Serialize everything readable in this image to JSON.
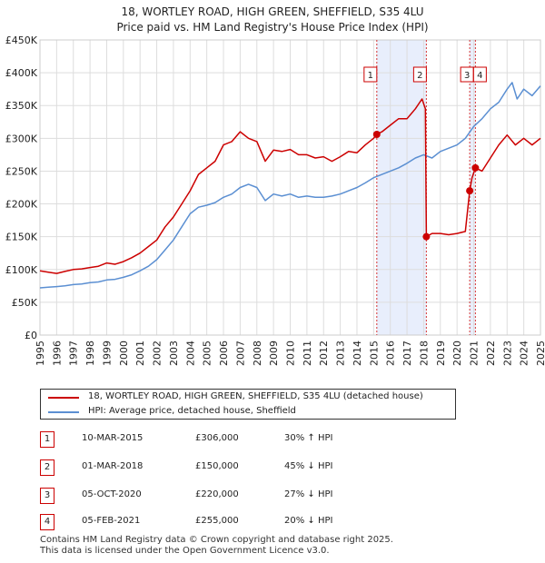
{
  "title_line1": "18, WORTLEY ROAD, HIGH GREEN, SHEFFIELD, S35 4LU",
  "title_line2": "Price paid vs. HM Land Registry's House Price Index (HPI)",
  "colors": {
    "property": "#cc0000",
    "hpi": "#5b8fd2",
    "shade": "#e8eefc",
    "vline": "#cc0000"
  },
  "chart_data": {
    "type": "line",
    "xlim": [
      1995,
      2025
    ],
    "ylim": [
      0,
      450000
    ],
    "y_ticks": [
      0,
      50000,
      100000,
      150000,
      200000,
      250000,
      300000,
      350000,
      400000,
      450000
    ],
    "y_tick_labels": [
      "£0",
      "£50K",
      "£100K",
      "£150K",
      "£200K",
      "£250K",
      "£300K",
      "£350K",
      "£400K",
      "£450K"
    ],
    "x_ticks": [
      1995,
      1996,
      1997,
      1998,
      1999,
      2000,
      2001,
      2002,
      2003,
      2004,
      2005,
      2006,
      2007,
      2008,
      2009,
      2010,
      2011,
      2012,
      2013,
      2014,
      2015,
      2016,
      2017,
      2018,
      2019,
      2020,
      2021,
      2022,
      2023,
      2024,
      2025
    ],
    "shaded_ranges": [
      [
        2015.19,
        2018.16
      ],
      [
        2020.76,
        2021.1
      ]
    ],
    "series": [
      {
        "name": "18, WORTLEY ROAD, HIGH GREEN, SHEFFIELD, S35 4LU (detached house)",
        "key": "property",
        "x": [
          1995.0,
          1995.5,
          1996.0,
          1996.5,
          1997.0,
          1997.5,
          1998.0,
          1998.5,
          1999.0,
          1999.5,
          2000.0,
          2000.5,
          2001.0,
          2001.5,
          2002.0,
          2002.5,
          2003.0,
          2003.5,
          2004.0,
          2004.5,
          2005.0,
          2005.5,
          2006.0,
          2006.5,
          2007.0,
          2007.5,
          2008.0,
          2008.5,
          2009.0,
          2009.5,
          2010.0,
          2010.5,
          2011.0,
          2011.5,
          2012.0,
          2012.5,
          2013.0,
          2013.5,
          2014.0,
          2014.5,
          2015.0,
          2015.19,
          2015.5,
          2016.0,
          2016.5,
          2017.0,
          2017.5,
          2017.9,
          2018.1,
          2018.16,
          2018.5,
          2019.0,
          2019.5,
          2020.0,
          2020.5,
          2020.76,
          2020.9,
          2021.1,
          2021.5,
          2022.0,
          2022.5,
          2023.0,
          2023.5,
          2024.0,
          2024.5,
          2025.0
        ],
        "values": [
          98000,
          96000,
          94000,
          97000,
          100000,
          101000,
          103000,
          105000,
          110000,
          108000,
          112000,
          118000,
          125000,
          135000,
          145000,
          165000,
          180000,
          200000,
          220000,
          245000,
          255000,
          265000,
          290000,
          295000,
          310000,
          300000,
          295000,
          265000,
          282000,
          280000,
          283000,
          275000,
          275000,
          270000,
          272000,
          265000,
          272000,
          280000,
          278000,
          290000,
          300000,
          306000,
          310000,
          320000,
          330000,
          330000,
          345000,
          360000,
          345000,
          150000,
          155000,
          155000,
          153000,
          155000,
          158000,
          220000,
          240000,
          255000,
          250000,
          270000,
          290000,
          305000,
          290000,
          300000,
          290000,
          300000
        ]
      },
      {
        "name": "HPI: Average price, detached house, Sheffield",
        "key": "hpi",
        "x": [
          1995.0,
          1995.5,
          1996.0,
          1996.5,
          1997.0,
          1997.5,
          1998.0,
          1998.5,
          1999.0,
          1999.5,
          2000.0,
          2000.5,
          2001.0,
          2001.5,
          2002.0,
          2002.5,
          2003.0,
          2003.5,
          2004.0,
          2004.5,
          2005.0,
          2005.5,
          2006.0,
          2006.5,
          2007.0,
          2007.5,
          2008.0,
          2008.5,
          2009.0,
          2009.5,
          2010.0,
          2010.5,
          2011.0,
          2011.5,
          2012.0,
          2012.5,
          2013.0,
          2013.5,
          2014.0,
          2014.5,
          2015.0,
          2015.5,
          2016.0,
          2016.5,
          2017.0,
          2017.5,
          2018.0,
          2018.5,
          2019.0,
          2019.5,
          2020.0,
          2020.5,
          2021.0,
          2021.5,
          2022.0,
          2022.5,
          2023.0,
          2023.3,
          2023.6,
          2024.0,
          2024.5,
          2025.0
        ],
        "values": [
          72000,
          73000,
          74000,
          75000,
          77000,
          78000,
          80000,
          81000,
          84000,
          85000,
          88000,
          92000,
          98000,
          105000,
          115000,
          130000,
          145000,
          165000,
          185000,
          195000,
          198000,
          202000,
          210000,
          215000,
          225000,
          230000,
          225000,
          205000,
          215000,
          212000,
          215000,
          210000,
          212000,
          210000,
          210000,
          212000,
          215000,
          220000,
          225000,
          232000,
          240000,
          245000,
          250000,
          255000,
          262000,
          270000,
          275000,
          270000,
          280000,
          285000,
          290000,
          300000,
          318000,
          330000,
          345000,
          355000,
          375000,
          385000,
          360000,
          375000,
          365000,
          380000
        ]
      }
    ],
    "sales": [
      {
        "n": "1",
        "x": 2015.19,
        "price": 306000
      },
      {
        "n": "2",
        "x": 2018.16,
        "price": 150000
      },
      {
        "n": "3",
        "x": 2020.76,
        "price": 220000
      },
      {
        "n": "4",
        "x": 2021.1,
        "price": 255000
      }
    ]
  },
  "legend": {
    "property": "18, WORTLEY ROAD, HIGH GREEN, SHEFFIELD, S35 4LU (detached house)",
    "hpi": "HPI: Average price, detached house, Sheffield"
  },
  "sales_table": [
    {
      "n": "1",
      "date": "10-MAR-2015",
      "price": "£306,000",
      "hpi": "30% ↑ HPI"
    },
    {
      "n": "2",
      "date": "01-MAR-2018",
      "price": "£150,000",
      "hpi": "45% ↓ HPI"
    },
    {
      "n": "3",
      "date": "05-OCT-2020",
      "price": "£220,000",
      "hpi": "27% ↓ HPI"
    },
    {
      "n": "4",
      "date": "05-FEB-2021",
      "price": "£255,000",
      "hpi": "20% ↓ HPI"
    }
  ],
  "footer_line1": "Contains HM Land Registry data © Crown copyright and database right 2025.",
  "footer_line2": "This data is licensed under the Open Government Licence v3.0."
}
